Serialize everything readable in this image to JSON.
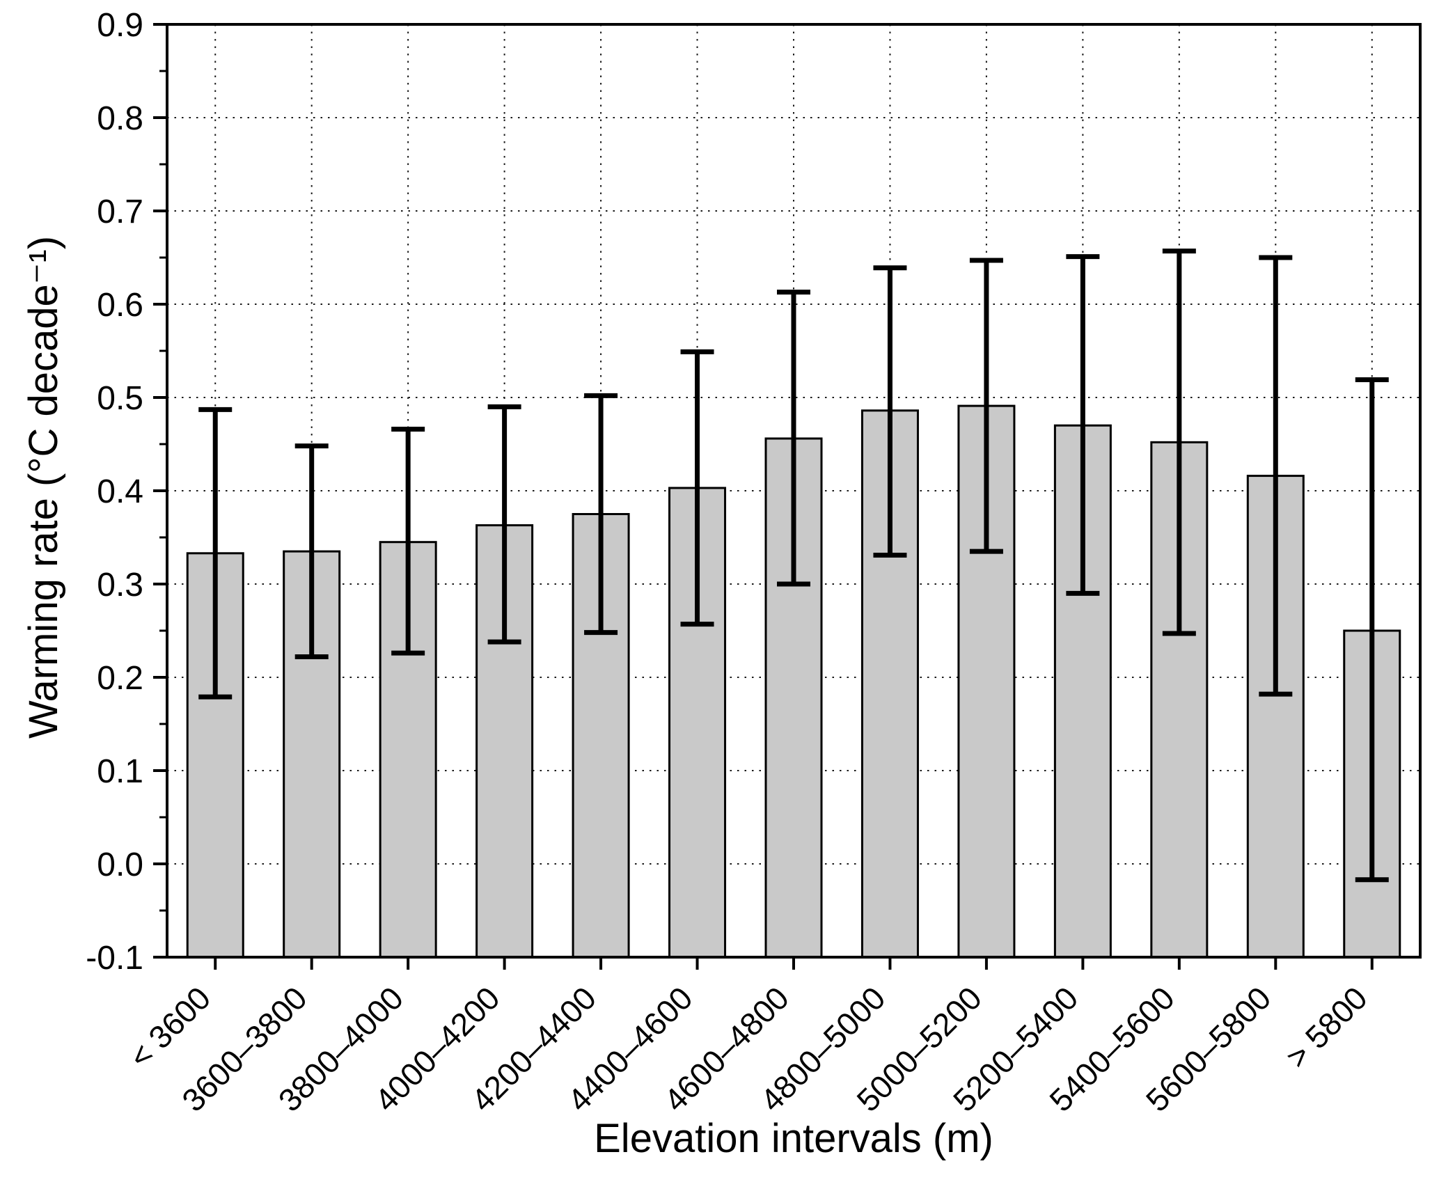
{
  "chart_data": {
    "type": "bar",
    "title": "",
    "xlabel": "Elevation intervals (m)",
    "ylabel": "Warming rate (°C decade⁻¹)",
    "categories": [
      "< 3600",
      "3600–3800",
      "3800–4000",
      "4000–4200",
      "4200–4400",
      "4400–4600",
      "4600–4800",
      "4800–5000",
      "5000–5200",
      "5200–5400",
      "5400–5600",
      "5600–5800",
      "> 5800"
    ],
    "values": [
      0.333,
      0.335,
      0.345,
      0.363,
      0.375,
      0.403,
      0.456,
      0.486,
      0.491,
      0.47,
      0.452,
      0.416,
      0.25
    ],
    "error_low": [
      0.179,
      0.222,
      0.226,
      0.238,
      0.248,
      0.257,
      0.3,
      0.331,
      0.335,
      0.29,
      0.247,
      0.182,
      -0.017
    ],
    "error_high": [
      0.487,
      0.448,
      0.466,
      0.49,
      0.502,
      0.549,
      0.613,
      0.639,
      0.647,
      0.651,
      0.657,
      0.65,
      0.519
    ],
    "ylim": [
      -0.1,
      0.9
    ],
    "ytick_step": 0.1,
    "ytick_labels": [
      "0.9",
      "0.8",
      "0.7",
      "0.6",
      "0.5",
      "0.4",
      "0.3",
      "0.2",
      "0.1",
      "0.0",
      "-0.1"
    ],
    "grid": "dotted, horizontal at each y tick and vertical at each category center",
    "legend": "none",
    "bar_color": "#c9c9c9",
    "bar_edge_color": "#000000",
    "error_bar_color": "#000000",
    "background_color": "#ffffff"
  }
}
